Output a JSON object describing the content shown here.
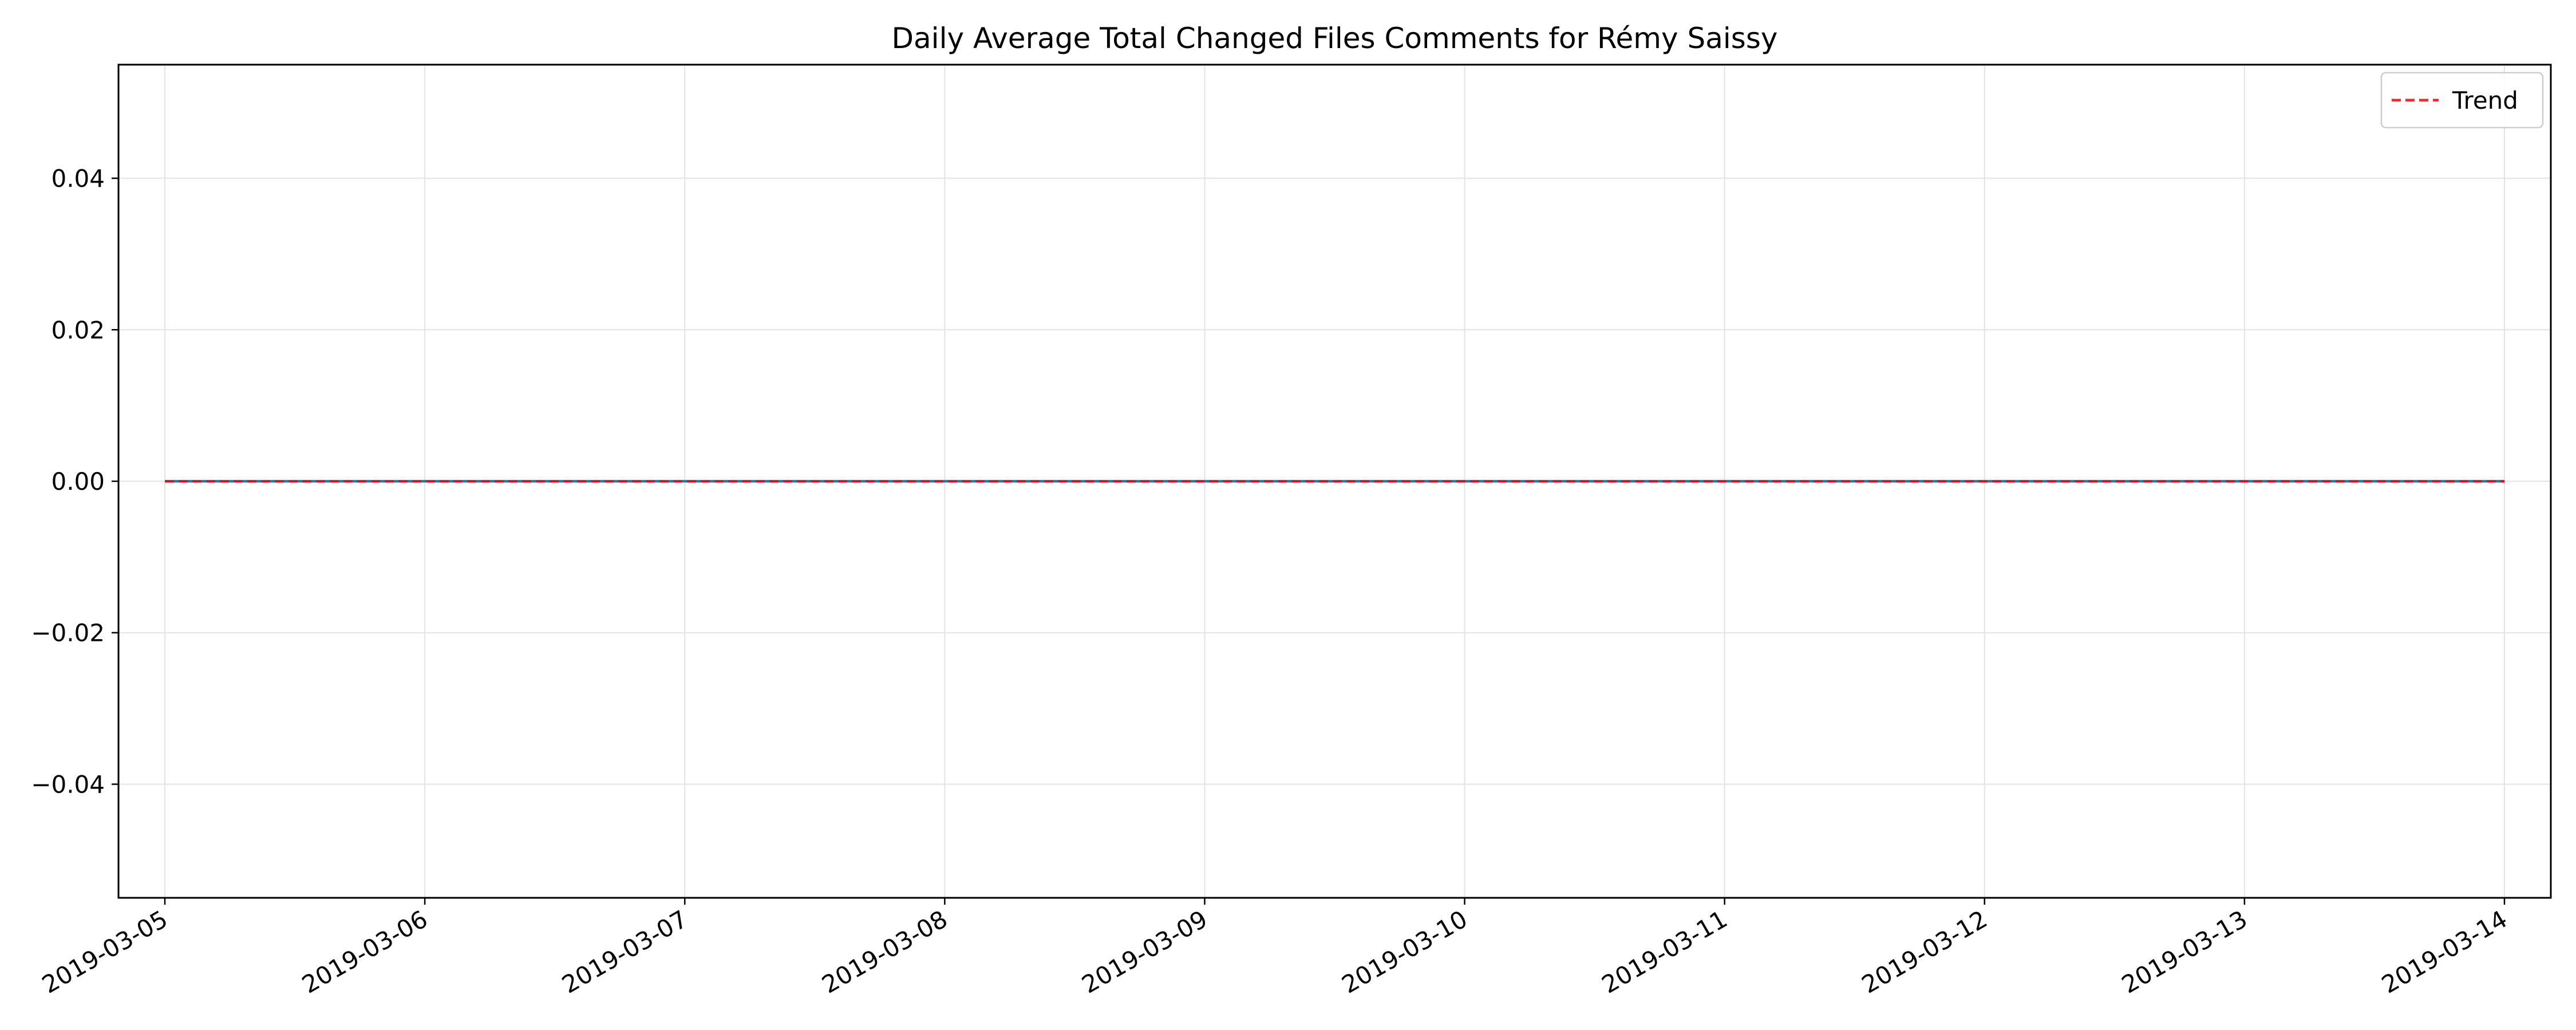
{
  "chart_data": {
    "type": "line",
    "title": "Daily Average Total Changed Files Comments for Rémy Saissy",
    "xlabel": "",
    "ylabel": "",
    "x": [
      "2019-03-05",
      "2019-03-06",
      "2019-03-07",
      "2019-03-08",
      "2019-03-09",
      "2019-03-10",
      "2019-03-11",
      "2019-03-12",
      "2019-03-13",
      "2019-03-14"
    ],
    "x_tick_labels": [
      "2019-03-05",
      "2019-03-06",
      "2019-03-07",
      "2019-03-08",
      "2019-03-09",
      "2019-03-10",
      "2019-03-11",
      "2019-03-12",
      "2019-03-13",
      "2019-03-14"
    ],
    "ylim": [
      -0.055,
      0.055
    ],
    "y_ticks": [
      -0.04,
      -0.02,
      0.0,
      0.02,
      0.04
    ],
    "y_tick_labels": [
      "−0.04",
      "−0.02",
      "0.00",
      "0.02",
      "0.04"
    ],
    "grid": true,
    "legend_position": "top-right",
    "series": [
      {
        "values": [
          0,
          0,
          0,
          0,
          0,
          0,
          0,
          0,
          0,
          0
        ],
        "color": "#1f77b4",
        "style": "solid"
      },
      {
        "name": "Trend",
        "values": [
          0,
          0,
          0,
          0,
          0,
          0,
          0,
          0,
          0,
          0
        ],
        "color": "#ff0000",
        "style": "dashed"
      }
    ]
  }
}
